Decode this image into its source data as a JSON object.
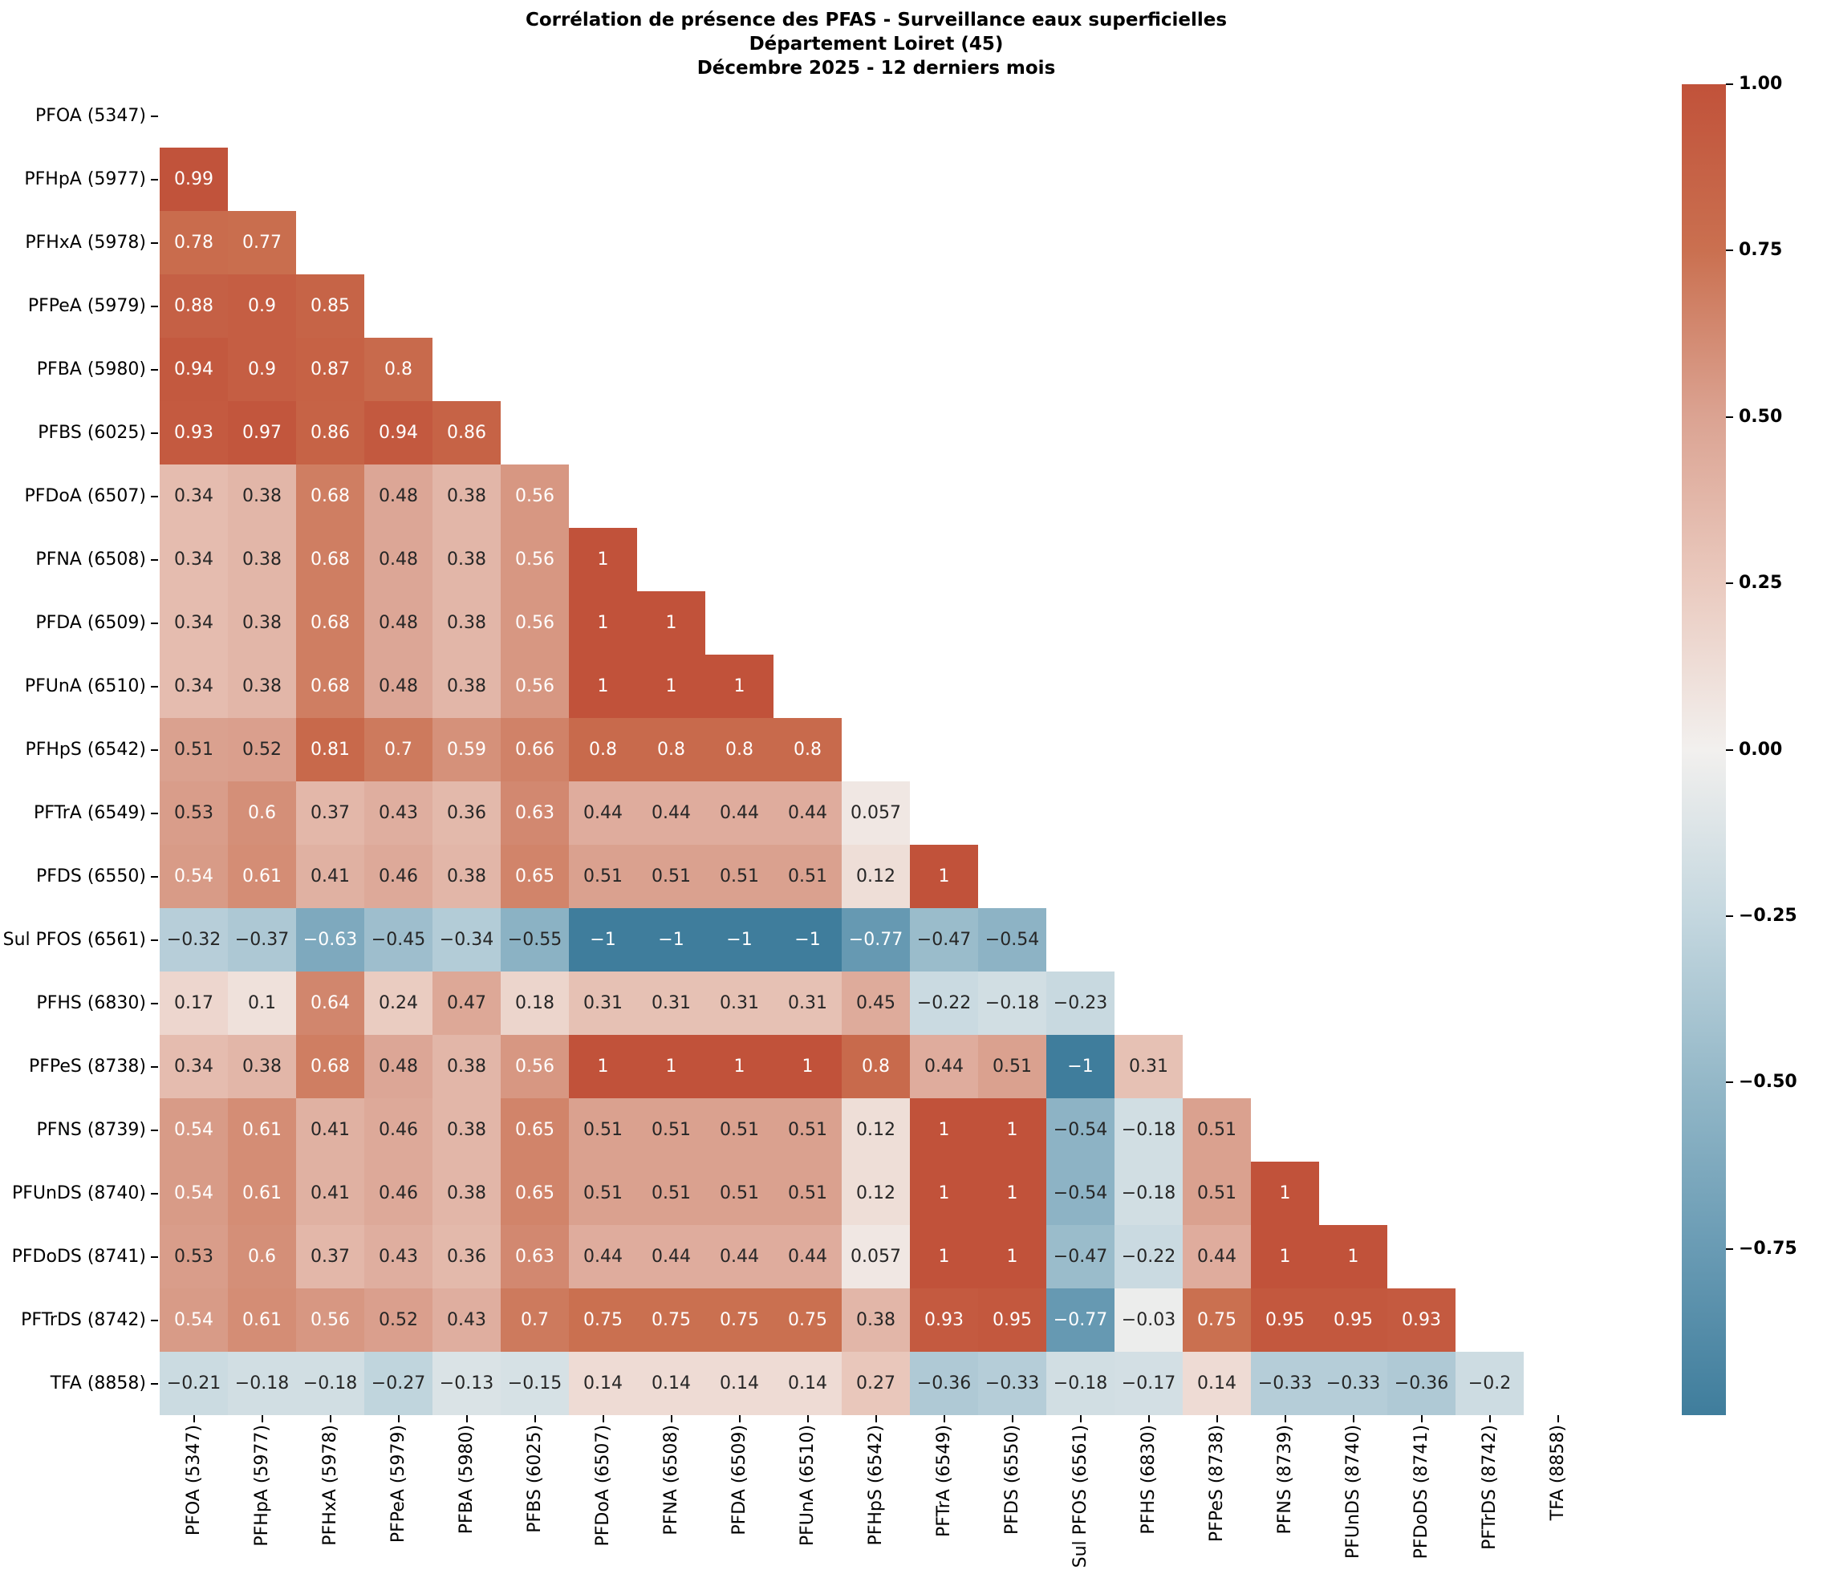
{
  "chart_data": {
    "type": "heatmap",
    "title_lines": [
      "Corrélation de présence des PFAS - Surveillance eaux superficielles",
      "Département Loiret (45)",
      "Décembre 2025 - 12 derniers mois"
    ],
    "categories": [
      "PFOA (5347)",
      "PFHpA (5977)",
      "PFHxA (5978)",
      "PFPeA (5979)",
      "PFBA (5980)",
      "PFBS (6025)",
      "PFDoA (6507)",
      "PFNA (6508)",
      "PFDA (6509)",
      "PFUnA (6510)",
      "PFHpS (6542)",
      "PFTrA (6549)",
      "PFDS (6550)",
      "Sul PFOS (6561)",
      "PFHS (6830)",
      "PFPeS (8738)",
      "PFNS (8739)",
      "PFUnDS (8740)",
      "PFDoDS (8741)",
      "PFTrDS (8742)",
      "TFA (8858)"
    ],
    "rows": [
      {
        "label": "PFOA (5347)",
        "values": []
      },
      {
        "label": "PFHpA (5977)",
        "values": [
          0.99
        ]
      },
      {
        "label": "PFHxA (5978)",
        "values": [
          0.78,
          0.77
        ]
      },
      {
        "label": "PFPeA (5979)",
        "values": [
          0.88,
          0.9,
          0.85
        ]
      },
      {
        "label": "PFBA (5980)",
        "values": [
          0.94,
          0.9,
          0.87,
          0.8
        ]
      },
      {
        "label": "PFBS (6025)",
        "values": [
          0.93,
          0.97,
          0.86,
          0.94,
          0.86
        ]
      },
      {
        "label": "PFDoA (6507)",
        "values": [
          0.34,
          0.38,
          0.68,
          0.48,
          0.38,
          0.56
        ]
      },
      {
        "label": "PFNA (6508)",
        "values": [
          0.34,
          0.38,
          0.68,
          0.48,
          0.38,
          0.56,
          1
        ]
      },
      {
        "label": "PFDA (6509)",
        "values": [
          0.34,
          0.38,
          0.68,
          0.48,
          0.38,
          0.56,
          1,
          1
        ]
      },
      {
        "label": "PFUnA (6510)",
        "values": [
          0.34,
          0.38,
          0.68,
          0.48,
          0.38,
          0.56,
          1,
          1,
          1
        ]
      },
      {
        "label": "PFHpS (6542)",
        "values": [
          0.51,
          0.52,
          0.81,
          0.7,
          0.59,
          0.66,
          0.8,
          0.8,
          0.8,
          0.8
        ]
      },
      {
        "label": "PFTrA (6549)",
        "values": [
          0.53,
          0.6,
          0.37,
          0.43,
          0.36,
          0.63,
          0.44,
          0.44,
          0.44,
          0.44,
          0.057
        ]
      },
      {
        "label": "PFDS (6550)",
        "values": [
          0.54,
          0.61,
          0.41,
          0.46,
          0.38,
          0.65,
          0.51,
          0.51,
          0.51,
          0.51,
          0.12,
          1
        ]
      },
      {
        "label": "Sul PFOS (6561)",
        "values": [
          -0.32,
          -0.37,
          -0.63,
          -0.45,
          -0.34,
          -0.55,
          -1,
          -1,
          -1,
          -1,
          -0.77,
          -0.47,
          -0.54
        ]
      },
      {
        "label": "PFHS (6830)",
        "values": [
          0.17,
          0.1,
          0.64,
          0.24,
          0.47,
          0.18,
          0.31,
          0.31,
          0.31,
          0.31,
          0.45,
          -0.22,
          -0.18,
          -0.23
        ]
      },
      {
        "label": "PFPeS (8738)",
        "values": [
          0.34,
          0.38,
          0.68,
          0.48,
          0.38,
          0.56,
          1,
          1,
          1,
          1,
          0.8,
          0.44,
          0.51,
          -1,
          0.31
        ]
      },
      {
        "label": "PFNS (8739)",
        "values": [
          0.54,
          0.61,
          0.41,
          0.46,
          0.38,
          0.65,
          0.51,
          0.51,
          0.51,
          0.51,
          0.12,
          1,
          1,
          -0.54,
          -0.18,
          0.51
        ]
      },
      {
        "label": "PFUnDS (8740)",
        "values": [
          0.54,
          0.61,
          0.41,
          0.46,
          0.38,
          0.65,
          0.51,
          0.51,
          0.51,
          0.51,
          0.12,
          1,
          1,
          -0.54,
          -0.18,
          0.51,
          1
        ]
      },
      {
        "label": "PFDoDS (8741)",
        "values": [
          0.53,
          0.6,
          0.37,
          0.43,
          0.36,
          0.63,
          0.44,
          0.44,
          0.44,
          0.44,
          0.057,
          1,
          1,
          -0.47,
          -0.22,
          0.44,
          1,
          1
        ]
      },
      {
        "label": "PFTrDS (8742)",
        "values": [
          0.54,
          0.61,
          0.56,
          0.52,
          0.43,
          0.7,
          0.75,
          0.75,
          0.75,
          0.75,
          0.38,
          0.93,
          0.95,
          -0.77,
          -0.03,
          0.75,
          0.95,
          0.95,
          0.93
        ]
      },
      {
        "label": "TFA (8858)",
        "values": [
          -0.21,
          -0.18,
          -0.18,
          -0.27,
          -0.13,
          -0.15,
          0.14,
          0.14,
          0.14,
          0.14,
          0.27,
          -0.36,
          -0.33,
          -0.18,
          -0.17,
          0.14,
          -0.33,
          -0.33,
          -0.36,
          -0.2
        ]
      }
    ],
    "vmin": -1,
    "vmax": 1,
    "legend_position": "right",
    "colorbar": {
      "ticks": [
        {
          "label": "1.00",
          "value": 1
        },
        {
          "label": "0.75",
          "value": 0.75
        },
        {
          "label": "0.50",
          "value": 0.5
        },
        {
          "label": "0.25",
          "value": 0.25
        },
        {
          "label": "0.00",
          "value": 0
        },
        {
          "label": "−0.25",
          "value": -0.25
        },
        {
          "label": "−0.50",
          "value": -0.5
        },
        {
          "label": "−0.75",
          "value": -0.75
        }
      ]
    },
    "palette_stops": [
      {
        "v": -1,
        "c": "#3f7d9c"
      },
      {
        "v": -0.75,
        "c": "#699bb4"
      },
      {
        "v": -0.5,
        "c": "#94b8c8"
      },
      {
        "v": -0.25,
        "c": "#c4d7df"
      },
      {
        "v": 0,
        "c": "#f2f0ee"
      },
      {
        "v": 0.25,
        "c": "#eacabf"
      },
      {
        "v": 0.5,
        "c": "#dba392"
      },
      {
        "v": 0.75,
        "c": "#ca7050"
      },
      {
        "v": 1,
        "c": "#c1523a"
      }
    ],
    "colors": {
      "annot_dark": "#262626",
      "annot_light": "#ffffff",
      "background": "#ffffff",
      "tick": "#000000"
    }
  }
}
